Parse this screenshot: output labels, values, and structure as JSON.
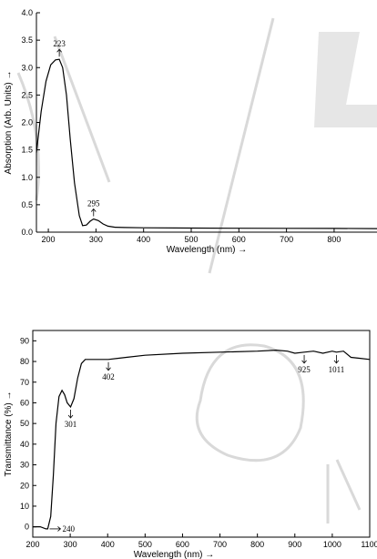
{
  "chart_data": [
    {
      "type": "line",
      "title": "",
      "xlabel": "Wavelength (nm) →",
      "ylabel": "Absorption (Arb. Units) →",
      "xlim": [
        175,
        890
      ],
      "ylim": [
        0,
        4.0
      ],
      "x_ticks": [
        200,
        300,
        400,
        500,
        600,
        700,
        800
      ],
      "y_ticks": [
        0.0,
        0.5,
        1.0,
        1.5,
        2.0,
        2.5,
        3.0,
        3.5,
        4.0
      ],
      "y_tick_format": 1,
      "series": [
        {
          "x": [
            175,
            185,
            195,
            205,
            215,
            223,
            230,
            238,
            246,
            255,
            265,
            272,
            280,
            288,
            295,
            305,
            315,
            325,
            340,
            360,
            400,
            500,
            600,
            700,
            800,
            890
          ],
          "y": [
            1.45,
            2.2,
            2.75,
            3.05,
            3.14,
            3.15,
            3.0,
            2.5,
            1.7,
            0.9,
            0.3,
            0.12,
            0.13,
            0.2,
            0.24,
            0.21,
            0.15,
            0.11,
            0.09,
            0.085,
            0.08,
            0.075,
            0.072,
            0.07,
            0.068,
            0.065
          ]
        }
      ],
      "annotations": [
        {
          "text": "223",
          "x": 223,
          "y": 3.15,
          "direction": "up"
        },
        {
          "text": "295",
          "x": 295,
          "y": 0.24,
          "direction": "up"
        }
      ]
    },
    {
      "type": "line",
      "title": "",
      "xlabel": "Wavelength (nm) →",
      "ylabel": "Transmittance (%) →",
      "xlim": [
        200,
        1100
      ],
      "ylim": [
        -5,
        95
      ],
      "x_ticks": [
        200,
        300,
        400,
        500,
        600,
        700,
        800,
        900,
        1000,
        1100
      ],
      "y_ticks": [
        0,
        10,
        20,
        30,
        40,
        50,
        60,
        70,
        80,
        90
      ],
      "y_tick_format": 0,
      "series": [
        {
          "x": [
            200,
            220,
            235,
            240,
            248,
            255,
            262,
            270,
            278,
            285,
            292,
            301,
            310,
            320,
            330,
            340,
            360,
            402,
            450,
            500,
            600,
            700,
            800,
            850,
            880,
            900,
            925,
            950,
            975,
            1000,
            1011,
            1030,
            1050,
            1075,
            1100
          ],
          "y": [
            0,
            0,
            -1,
            -1,
            5,
            25,
            50,
            63,
            66,
            64,
            60,
            58,
            62,
            72,
            79,
            81,
            81,
            81,
            82,
            83,
            84,
            84.5,
            85,
            85.5,
            85,
            84,
            84.5,
            85,
            84,
            85,
            84.5,
            85,
            82,
            81.5,
            81
          ]
        }
      ],
      "annotations": [
        {
          "text": "240",
          "x": 240,
          "y": -1,
          "direction": "right"
        },
        {
          "text": "301",
          "x": 301,
          "y": 58,
          "direction": "down"
        },
        {
          "text": "402",
          "x": 402,
          "y": 81,
          "direction": "down"
        },
        {
          "text": "925",
          "x": 925,
          "y": 84.5,
          "direction": "down"
        },
        {
          "text": "1011",
          "x": 1011,
          "y": 84.5,
          "direction": "down"
        }
      ]
    }
  ]
}
